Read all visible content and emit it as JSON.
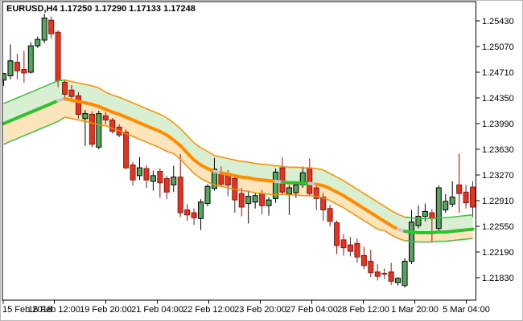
{
  "window": {
    "title_line": "EURUSD,H4 1.17250 1.17290 1.17133 1.17248",
    "symbol": "EURUSD",
    "timeframe": "H4",
    "quote_display": {
      "open": "1.17250",
      "high": "1.17290",
      "low": "1.17133",
      "close": "1.17248"
    }
  },
  "colors": {
    "background": "#ffffff",
    "frame": "#000000",
    "outer_border": "#b8b8b8",
    "text": "#000000",
    "candle_up_fill": "#54a65c",
    "candle_up_line": "#000000",
    "candle_down_fill": "#e33422",
    "candle_down_line": "#8c1710",
    "band_middle_up": "#2fc12f",
    "band_middle_down": "#ff8c00",
    "band_middle_flat": "#c9c9c9",
    "envelope_up": "#44bb44",
    "envelope_down": "#ff8c00",
    "fill_above_middle": "#d9efd2",
    "fill_below_middle": "#fce4bb"
  },
  "chart_data": {
    "type": "candlestick",
    "title": "EURUSD,H4 1.17250 1.17290 1.17133 1.17248",
    "grid": false,
    "legend": false,
    "y_axis": {
      "side": "right",
      "tick_labels": [
        "1.25430",
        "1.25070",
        "1.24710",
        "1.24350",
        "1.23990",
        "1.23630",
        "1.23270",
        "1.22910",
        "1.22550",
        "1.22190",
        "1.21830"
      ],
      "tick_prices": [
        1.2543,
        1.2507,
        1.2471,
        1.2435,
        1.2399,
        1.2363,
        1.2327,
        1.2291,
        1.2255,
        1.2219,
        1.2183
      ],
      "visible_max": 1.257,
      "visible_min": 1.2152
    },
    "x_axis": {
      "side": "bottom",
      "tick_labels": [
        "15 Feb 2018",
        "16 Feb 12:00",
        "19 Feb 20:00",
        "21 Feb 04:00",
        "22 Feb 12:00",
        "23 Feb 20:00",
        "27 Feb 04:00",
        "28 Feb 12:00",
        "1 Mar 20:00",
        "5 Mar 04:00"
      ],
      "tick_x": [
        3,
        66.5,
        130.5,
        194.5,
        258.5,
        322.5,
        386.5,
        450.5,
        514.5,
        578.5
      ]
    },
    "candles_format": "[open, high, low, close] — estimated from pixels",
    "candles": [
      [
        1.246,
        1.247,
        1.2452,
        1.2469
      ],
      [
        1.2466,
        1.251,
        1.2461,
        1.2487
      ],
      [
        1.2485,
        1.2497,
        1.2461,
        1.2473
      ],
      [
        1.2475,
        1.2501,
        1.2456,
        1.247
      ],
      [
        1.2471,
        1.2513,
        1.2469,
        1.2508
      ],
      [
        1.2508,
        1.2521,
        1.2505,
        1.2517
      ],
      [
        1.2516,
        1.2553,
        1.2512,
        1.2547
      ],
      [
        1.2544,
        1.2549,
        1.2518,
        1.2525
      ],
      [
        1.2527,
        1.253,
        1.245,
        1.2459
      ],
      [
        1.2457,
        1.2461,
        1.2436,
        1.244
      ],
      [
        1.2446,
        1.2453,
        1.2432,
        1.2437
      ],
      [
        1.2438,
        1.2443,
        1.2406,
        1.2412
      ],
      [
        1.2406,
        1.2418,
        1.2368,
        1.2413
      ],
      [
        1.2412,
        1.2416,
        1.2366,
        1.237
      ],
      [
        1.2366,
        1.2417,
        1.2363,
        1.2413
      ],
      [
        1.241,
        1.2415,
        1.2398,
        1.2404
      ],
      [
        1.2404,
        1.2407,
        1.2385,
        1.2388
      ],
      [
        1.2394,
        1.2398,
        1.238,
        1.2383
      ],
      [
        1.2387,
        1.2391,
        1.2335,
        1.2337
      ],
      [
        1.2341,
        1.2345,
        1.2312,
        1.232
      ],
      [
        1.2326,
        1.2352,
        1.232,
        1.2337
      ],
      [
        1.2336,
        1.2341,
        1.2309,
        1.232
      ],
      [
        1.2318,
        1.2333,
        1.2305,
        1.2326
      ],
      [
        1.2332,
        1.2336,
        1.2295,
        1.2316
      ],
      [
        1.2322,
        1.2326,
        1.2293,
        1.2303
      ],
      [
        1.2313,
        1.234,
        1.2303,
        1.2324
      ],
      [
        1.2324,
        1.2356,
        1.2268,
        1.2274
      ],
      [
        1.2278,
        1.2286,
        1.2263,
        1.2271
      ],
      [
        1.2274,
        1.228,
        1.2257,
        1.2267
      ],
      [
        1.2266,
        1.2293,
        1.225,
        1.2289
      ],
      [
        1.2287,
        1.2314,
        1.2283,
        1.2311
      ],
      [
        1.2308,
        1.2351,
        1.2305,
        1.2335
      ],
      [
        1.2329,
        1.2339,
        1.2311,
        1.2314
      ],
      [
        1.2326,
        1.2334,
        1.2297,
        1.2313
      ],
      [
        1.2322,
        1.2328,
        1.2274,
        1.2292
      ],
      [
        1.2301,
        1.2309,
        1.2269,
        1.2282
      ],
      [
        1.2287,
        1.2305,
        1.2259,
        1.2297
      ],
      [
        1.2289,
        1.2302,
        1.228,
        1.2298
      ],
      [
        1.2301,
        1.2306,
        1.2272,
        1.2284
      ],
      [
        1.2284,
        1.2296,
        1.227,
        1.2292
      ],
      [
        1.2294,
        1.2336,
        1.2288,
        1.2331
      ],
      [
        1.2337,
        1.2352,
        1.2299,
        1.2303
      ],
      [
        1.23,
        1.2313,
        1.2271,
        1.2309
      ],
      [
        1.2302,
        1.2317,
        1.2295,
        1.2313
      ],
      [
        1.2313,
        1.2339,
        1.2309,
        1.233
      ],
      [
        1.2337,
        1.235,
        1.2297,
        1.2301
      ],
      [
        1.2309,
        1.2313,
        1.2278,
        1.2294
      ],
      [
        1.2296,
        1.2302,
        1.2263,
        1.2278
      ],
      [
        1.228,
        1.2285,
        1.2255,
        1.2262
      ],
      [
        1.226,
        1.2263,
        1.2216,
        1.2228
      ],
      [
        1.2236,
        1.2244,
        1.2214,
        1.2225
      ],
      [
        1.2229,
        1.224,
        1.2213,
        1.222
      ],
      [
        1.2231,
        1.2238,
        1.2204,
        1.2212
      ],
      [
        1.2214,
        1.2226,
        1.2195,
        1.22
      ],
      [
        1.2206,
        1.2222,
        1.2184,
        1.219
      ],
      [
        1.2191,
        1.2202,
        1.2179,
        1.2185
      ],
      [
        1.2189,
        1.2196,
        1.2181,
        1.2188
      ],
      [
        1.2191,
        1.2204,
        1.2173,
        1.2178
      ],
      [
        1.2176,
        1.2184,
        1.2172,
        1.2182
      ],
      [
        1.2172,
        1.221,
        1.2169,
        1.2206
      ],
      [
        1.2206,
        1.2278,
        1.2202,
        1.2261
      ],
      [
        1.2256,
        1.2284,
        1.2252,
        1.2269
      ],
      [
        1.2269,
        1.2287,
        1.2262,
        1.2276
      ],
      [
        1.2274,
        1.2279,
        1.2233,
        1.2266
      ],
      [
        1.2252,
        1.2312,
        1.2246,
        1.2309
      ],
      [
        1.2278,
        1.23,
        1.2274,
        1.229
      ],
      [
        1.2286,
        1.2318,
        1.2282,
        1.2296
      ],
      [
        1.2313,
        1.2357,
        1.2274,
        1.2301
      ],
      [
        1.2303,
        1.2313,
        1.228,
        1.2288
      ],
      [
        1.231,
        1.2318,
        1.2268,
        1.2282
      ]
    ],
    "band": {
      "description": "envelope band: thin upper/lower lines, thick middle trend line, green fill above middle, peach fill below middle",
      "upper": [
        1.2427,
        1.2431,
        1.2435,
        1.2439,
        1.2443,
        1.2447,
        1.2451,
        1.2455,
        1.2459,
        1.246,
        1.2458,
        1.2456,
        1.2454,
        1.2452,
        1.2449,
        1.2443,
        1.2439,
        1.2436,
        1.2432,
        1.2428,
        1.2424,
        1.242,
        1.2416,
        1.2412,
        1.2407,
        1.24,
        1.2392,
        1.2382,
        1.2372,
        1.2365,
        1.236,
        1.2354,
        1.2352,
        1.235,
        1.2348,
        1.2346,
        1.2345,
        1.2343,
        1.2342,
        1.2341,
        1.234,
        1.2339,
        1.2338,
        1.2338,
        1.2337,
        1.2337,
        1.2336,
        1.2334,
        1.2329,
        1.2324,
        1.2319,
        1.2313,
        1.2307,
        1.2301,
        1.2295,
        1.2289,
        1.2283,
        1.2277,
        1.2272,
        1.2268,
        1.2267,
        1.2266,
        1.2266,
        1.2266,
        1.2267,
        1.2267,
        1.2268,
        1.2269,
        1.227,
        1.2271
      ],
      "middle": [
        1.2399,
        1.2403,
        1.2407,
        1.2411,
        1.2415,
        1.2419,
        1.2423,
        1.2427,
        1.2431,
        1.2434,
        1.2432,
        1.243,
        1.2428,
        1.2426,
        1.2423,
        1.2419,
        1.2415,
        1.2412,
        1.2408,
        1.2404,
        1.24,
        1.2396,
        1.2392,
        1.2388,
        1.2383,
        1.2376,
        1.2368,
        1.2358,
        1.2348,
        1.2341,
        1.2336,
        1.2332,
        1.233,
        1.2328,
        1.2326,
        1.2324,
        1.2323,
        1.2321,
        1.232,
        1.2319,
        1.2318,
        1.2317,
        1.2316,
        1.2316,
        1.2315,
        1.2315,
        1.2314,
        1.2312,
        1.2308,
        1.2303,
        1.2298,
        1.2292,
        1.2286,
        1.228,
        1.2274,
        1.2268,
        1.2262,
        1.2256,
        1.2251,
        1.2248,
        1.2247,
        1.2246,
        1.2246,
        1.2246,
        1.2247,
        1.2247,
        1.2248,
        1.2249,
        1.225,
        1.2251
      ],
      "lower": [
        1.237,
        1.2374,
        1.2378,
        1.2382,
        1.2386,
        1.239,
        1.2394,
        1.2398,
        1.2402,
        1.2408,
        1.2406,
        1.2404,
        1.2402,
        1.24,
        1.2397,
        1.2396,
        1.2392,
        1.2389,
        1.2385,
        1.2381,
        1.2377,
        1.2373,
        1.2369,
        1.2365,
        1.236,
        1.2357,
        1.2349,
        1.2339,
        1.2329,
        1.2322,
        1.2317,
        1.2313,
        1.2311,
        1.2309,
        1.2307,
        1.2305,
        1.2304,
        1.2302,
        1.2301,
        1.23,
        1.2299,
        1.23,
        1.2299,
        1.2299,
        1.2298,
        1.2298,
        1.2297,
        1.2295,
        1.2291,
        1.2286,
        1.2281,
        1.2275,
        1.2269,
        1.2263,
        1.2257,
        1.2251,
        1.2249,
        1.2243,
        1.2238,
        1.2235,
        1.2234,
        1.2233,
        1.2233,
        1.2233,
        1.2234,
        1.2234,
        1.2235,
        1.2236,
        1.2237,
        1.2238
      ],
      "middle_trend": "uuuuuuuuufddddddddddddddddddddddfddddddddfuuuufddddddddddddfuuuuuuuuuu",
      "envelope_trend": "uuuuuuuuuudddddddddddddddddddddddddddddddddddddddddddddddddduuuuuuuuuuu"
    }
  }
}
